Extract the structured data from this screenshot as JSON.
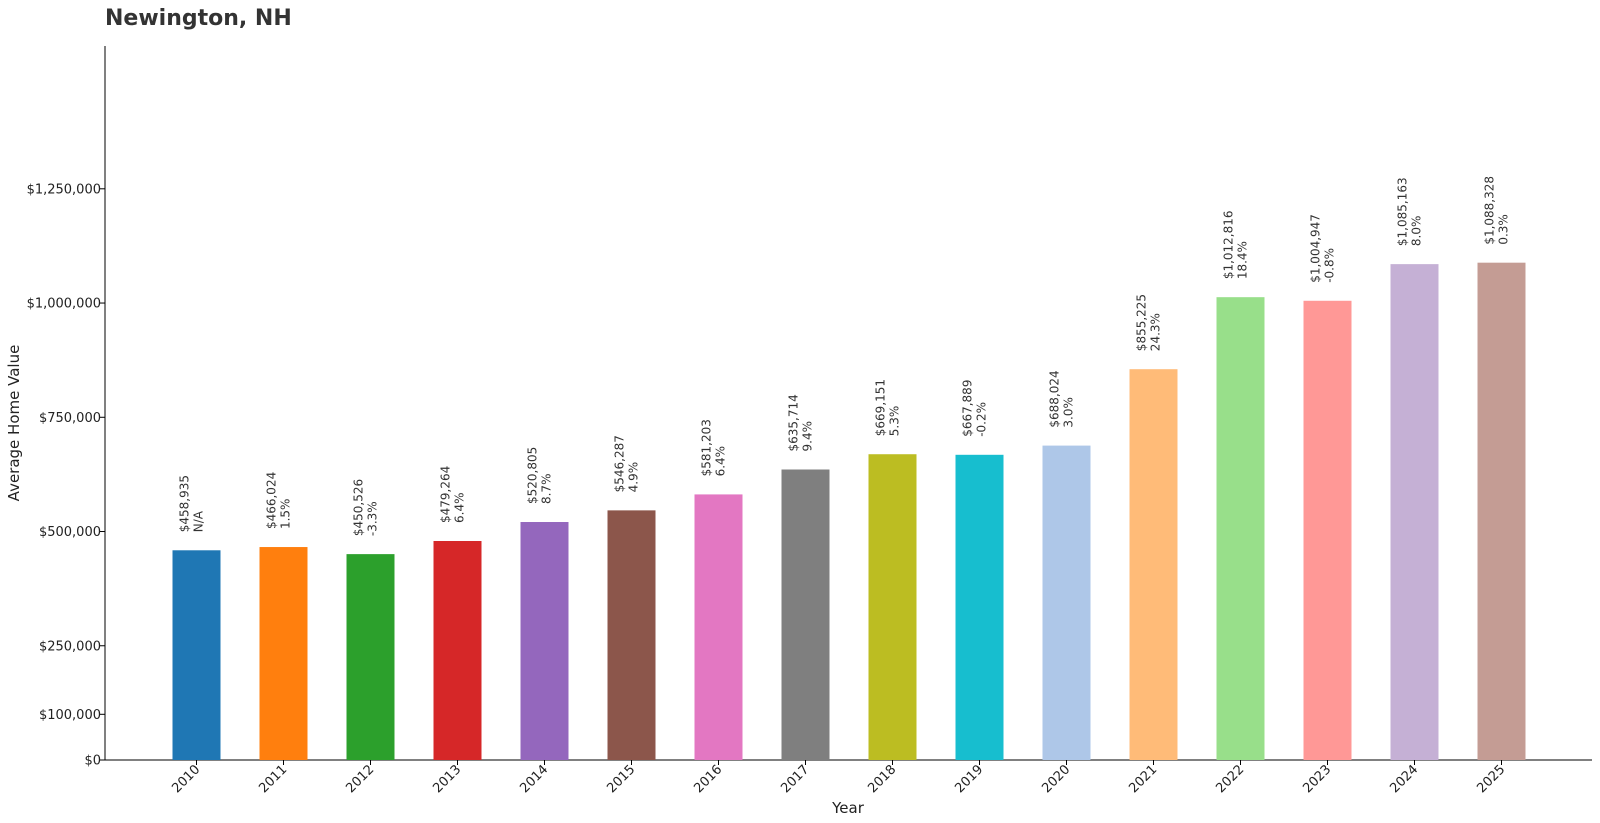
{
  "chart_data": {
    "type": "bar",
    "title": "Newington, NH",
    "xlabel": "Year",
    "ylabel": "Average Home Value",
    "ylim": [
      0,
      1562500
    ],
    "yticks": [
      0,
      100000,
      250000,
      500000,
      750000,
      1000000,
      1250000
    ],
    "ytick_labels": [
      "$0",
      "$100,000",
      "$250,000",
      "$500,000",
      "$750,000",
      "$1,000,000",
      "$1,250,000"
    ],
    "grid": false,
    "categories": [
      "2010",
      "2011",
      "2012",
      "2013",
      "2014",
      "2015",
      "2016",
      "2017",
      "2018",
      "2019",
      "2020",
      "2021",
      "2022",
      "2023",
      "2024",
      "2025"
    ],
    "values": [
      458935,
      466024,
      450526,
      479264,
      520805,
      546287,
      581203,
      635714,
      669151,
      667889,
      688024,
      855225,
      1012816,
      1004947,
      1085163,
      1088328
    ],
    "value_labels": [
      "$458,935",
      "$466,024",
      "$450,526",
      "$479,264",
      "$520,805",
      "$546,287",
      "$581,203",
      "$635,714",
      "$669,151",
      "$667,889",
      "$688,024",
      "$855,225",
      "$1,012,816",
      "$1,004,947",
      "$1,085,163",
      "$1,088,328"
    ],
    "change_labels": [
      "N/A",
      "1.5%",
      "-3.3%",
      "6.4%",
      "8.7%",
      "4.9%",
      "6.4%",
      "9.4%",
      "5.3%",
      "-0.2%",
      "3.0%",
      "24.3%",
      "18.4%",
      "-0.8%",
      "8.0%",
      "0.3%"
    ],
    "colors": [
      "#1f77b4",
      "#ff7f0e",
      "#2ca02c",
      "#d62728",
      "#9467bd",
      "#8c564b",
      "#e377c2",
      "#7f7f7f",
      "#bcbd22",
      "#17becf",
      "#aec7e8",
      "#ffbb78",
      "#98df8a",
      "#ff9896",
      "#c5b0d5",
      "#c49c94"
    ]
  }
}
